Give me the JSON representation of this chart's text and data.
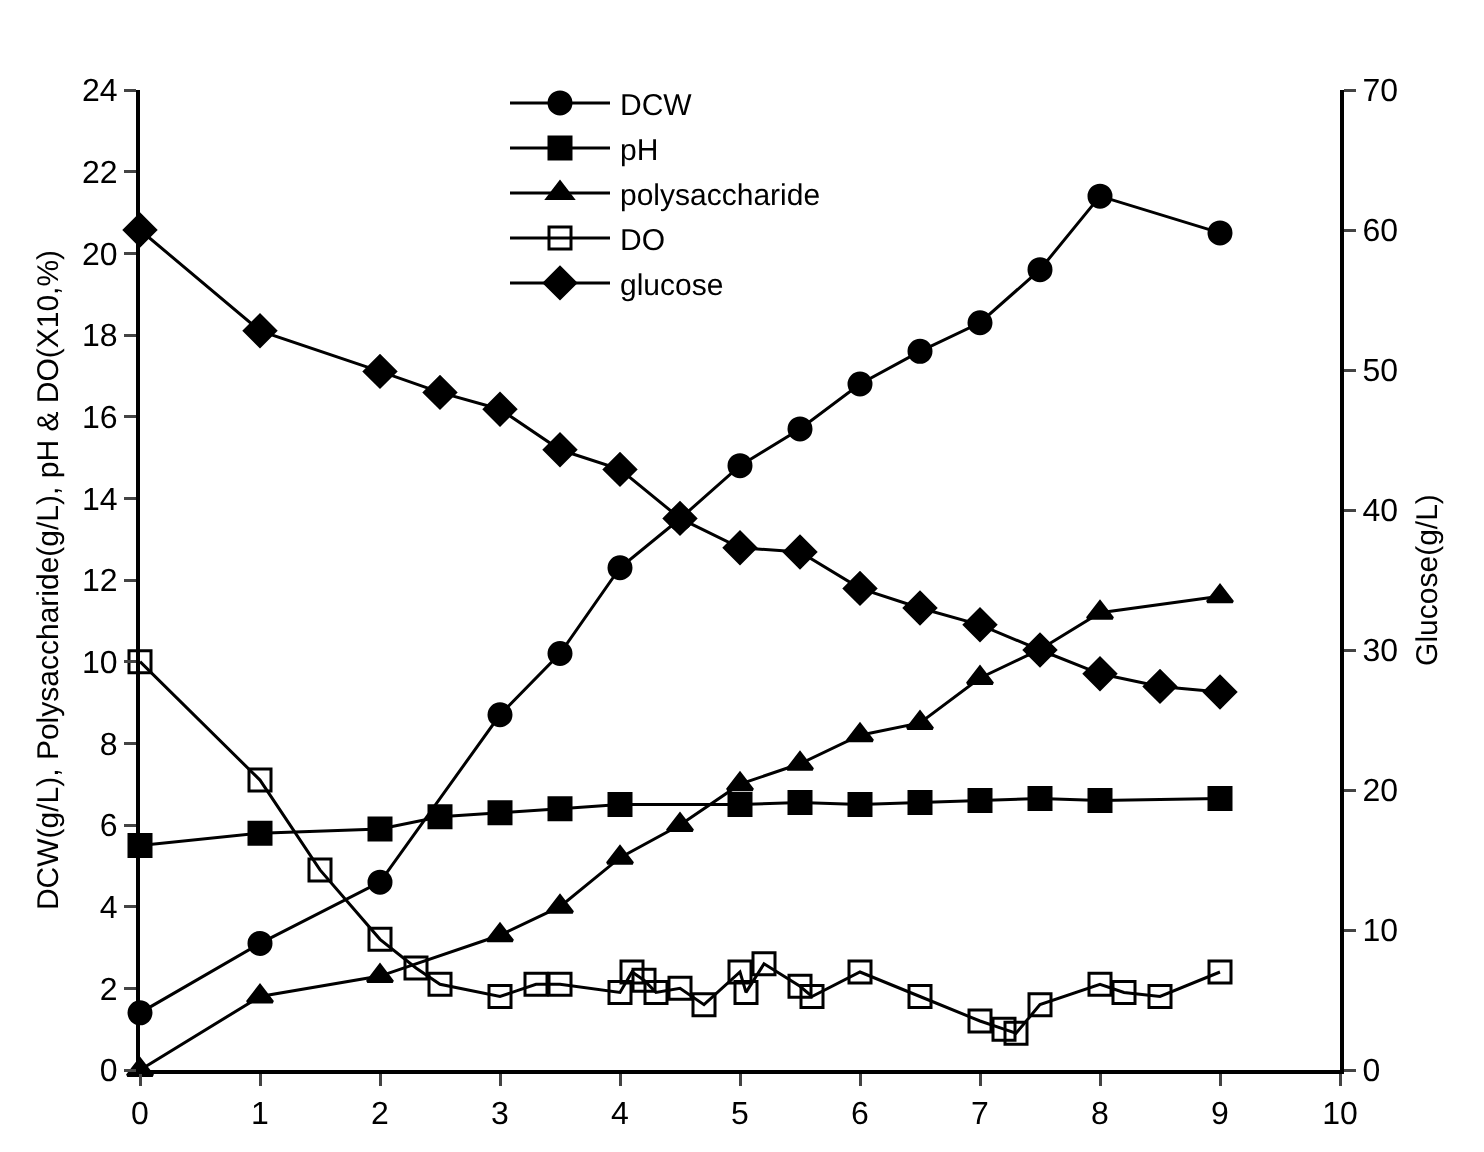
{
  "chart_data": {
    "type": "line",
    "ylabel": "DCW(g/L), Polysaccharide(g/L), pH & DO(X10,%)",
    "y2label": "Glucose(g/L)",
    "xlim": [
      0,
      10
    ],
    "xticks": [
      0,
      1,
      2,
      3,
      4,
      5,
      6,
      7,
      8,
      9,
      10
    ],
    "ylim": [
      0,
      24
    ],
    "yticks": [
      0,
      2,
      4,
      6,
      8,
      10,
      12,
      14,
      16,
      18,
      20,
      22,
      24
    ],
    "y2lim": [
      0,
      70
    ],
    "y2ticks": [
      0,
      10,
      20,
      30,
      40,
      50,
      60,
      70
    ],
    "grid": false,
    "legend": "top",
    "line_style": "solid",
    "series": [
      {
        "name": "DCW",
        "color": "#000000",
        "marker": "circle",
        "x": [
          0,
          1,
          2,
          3,
          3.5,
          4,
          4.5,
          5,
          5.5,
          6,
          6.5,
          7,
          7.5,
          8,
          9
        ],
        "values": [
          1.4,
          3.1,
          4.6,
          8.7,
          10.2,
          12.3,
          13.5,
          14.8,
          15.7,
          16.8,
          17.6,
          18.3,
          19.6,
          21.4,
          20.5
        ]
      },
      {
        "name": "pH",
        "color": "#000000",
        "marker": "square",
        "x": [
          0,
          1,
          2,
          2.5,
          3,
          3.5,
          4,
          5,
          5.5,
          6,
          6.5,
          7,
          7.5,
          8,
          9
        ],
        "values": [
          5.5,
          5.8,
          5.9,
          6.2,
          6.3,
          6.4,
          6.5,
          6.5,
          6.55,
          6.5,
          6.55,
          6.6,
          6.65,
          6.6,
          6.65
        ]
      },
      {
        "name": "polysaccharide",
        "color": "#000000",
        "marker": "triangle",
        "x": [
          0,
          1,
          2,
          3,
          3.5,
          4,
          4.5,
          5,
          5.5,
          6,
          6.5,
          7,
          7.5,
          8,
          9
        ],
        "values": [
          0,
          1.8,
          2.3,
          3.3,
          4.0,
          5.2,
          6.0,
          7.0,
          7.5,
          8.2,
          8.5,
          9.6,
          10.3,
          11.2,
          11.6
        ]
      },
      {
        "name": "DO",
        "color": "#000000",
        "marker": "square",
        "x": [
          0,
          1,
          1.5,
          2,
          2.3,
          2.5,
          3,
          3.3,
          3.5,
          4,
          4.1,
          4.2,
          4.3,
          4.5,
          4.7,
          5,
          5.05,
          5.2,
          5.5,
          5.6,
          6,
          6.5,
          7,
          7.2,
          7.3,
          7.5,
          8,
          8.2,
          8.5,
          9
        ],
        "values": [
          10,
          7.1,
          4.9,
          3.2,
          2.5,
          2.1,
          1.8,
          2.1,
          2.1,
          1.9,
          2.4,
          2.2,
          1.9,
          2.0,
          1.6,
          2.4,
          1.9,
          2.6,
          2.05,
          1.8,
          2.4,
          1.8,
          1.2,
          1.0,
          0.9,
          1.6,
          2.1,
          1.9,
          1.8,
          2.4
        ]
      },
      {
        "name": "glucose",
        "color": "#000000",
        "marker": "diamond",
        "axis": "y2",
        "x": [
          0,
          1,
          2,
          2.5,
          3,
          3.5,
          4,
          4.5,
          5,
          5.5,
          6,
          6.5,
          7,
          7.5,
          8,
          8.5,
          9
        ],
        "values": [
          60,
          52.8,
          49.9,
          48.4,
          47.2,
          44.3,
          42.9,
          39.4,
          37.3,
          37,
          34.4,
          33,
          31.8,
          30,
          28.3,
          27.4,
          27
        ]
      }
    ]
  }
}
